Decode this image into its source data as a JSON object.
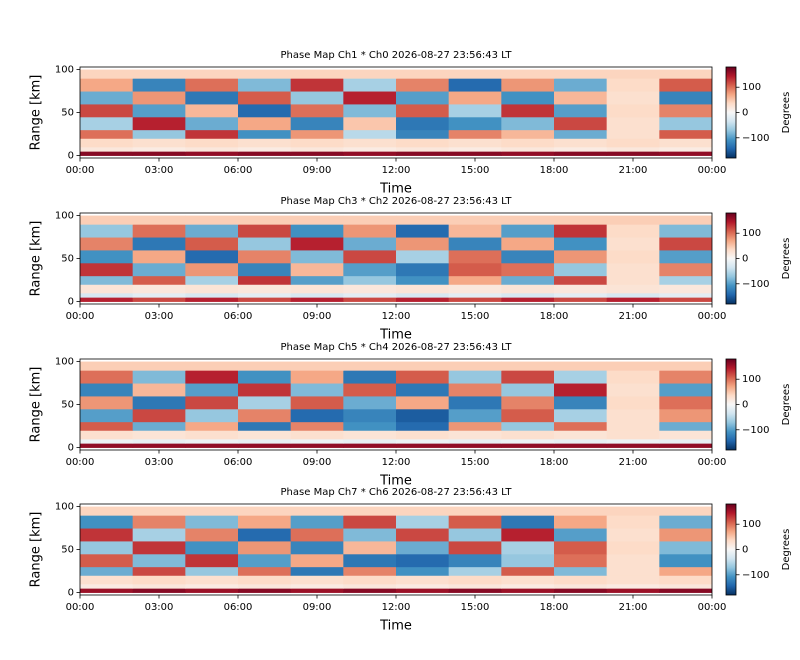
{
  "chart_data": [
    {
      "type": "heatmap",
      "title": "Phase Map Ch1 * Ch0 2026-08-27 23:56:43 LT",
      "xlabel": "Time",
      "ylabel": "Range [km]",
      "x_bins": [
        0,
        2,
        4,
        6,
        8,
        10,
        12,
        14,
        16,
        18,
        20,
        22,
        24
      ],
      "y_bins": [
        0,
        5,
        10,
        20,
        30,
        45,
        60,
        75,
        90,
        100
      ],
      "z": [
        [
          165,
          165,
          160,
          165,
          165,
          160,
          165,
          165,
          160,
          165,
          165,
          160
        ],
        [
          20,
          15,
          20,
          15,
          20,
          15,
          20,
          15,
          20,
          15,
          20,
          15
        ],
        [
          35,
          30,
          35,
          30,
          35,
          30,
          35,
          30,
          35,
          30,
          35,
          30
        ],
        [
          100,
          -70,
          130,
          -110,
          80,
          -50,
          -120,
          90,
          60,
          -90,
          30,
          110
        ],
        [
          -60,
          140,
          -90,
          70,
          -120,
          50,
          -130,
          -110,
          -80,
          120,
          30,
          -70
        ],
        [
          120,
          -100,
          60,
          -140,
          100,
          -80,
          110,
          -60,
          130,
          -100,
          35,
          90
        ],
        [
          -90,
          80,
          -130,
          110,
          -70,
          140,
          -100,
          70,
          -110,
          60,
          30,
          -120
        ],
        [
          70,
          -120,
          100,
          -80,
          130,
          -60,
          90,
          -140,
          80,
          -90,
          35,
          110
        ],
        [
          40,
          40,
          40,
          40,
          40,
          40,
          40,
          40,
          40,
          40,
          40,
          40
        ]
      ],
      "xlim": [
        0,
        24
      ],
      "xticks": [
        {
          "value": 0,
          "label": "00:00"
        },
        {
          "value": 3,
          "label": "03:00"
        },
        {
          "value": 6,
          "label": "06:00"
        },
        {
          "value": 9,
          "label": "09:00"
        },
        {
          "value": 12,
          "label": "12:00"
        },
        {
          "value": 15,
          "label": "15:00"
        },
        {
          "value": 18,
          "label": "18:00"
        },
        {
          "value": 21,
          "label": "21:00"
        },
        {
          "value": 24,
          "label": "00:00"
        }
      ],
      "ylim": [
        -3,
        103
      ],
      "yticks": [
        0,
        50,
        100
      ],
      "colorbar": {
        "label": "Degrees",
        "clim": [
          -180,
          180
        ],
        "ticks": [
          {
            "value": -100,
            "label": "−100"
          },
          0,
          100
        ]
      },
      "colormap": [
        "#053061",
        "#2166ac",
        "#4393c3",
        "#92c5de",
        "#d1e5f0",
        "#f7f7f7",
        "#fddbc7",
        "#f4a582",
        "#d6604d",
        "#b2182b",
        "#67001f"
      ]
    },
    {
      "type": "heatmap",
      "title": "Phase Map Ch3 * Ch2 2026-08-27 23:56:43 LT",
      "xlabel": "Time",
      "ylabel": "Range [km]",
      "x_bins": [
        0,
        2,
        4,
        6,
        8,
        10,
        12,
        14,
        16,
        18,
        20,
        22,
        24
      ],
      "y_bins": [
        0,
        5,
        10,
        20,
        30,
        45,
        60,
        75,
        90,
        100
      ],
      "z": [
        [
          140,
          120,
          140,
          120,
          140,
          120,
          140,
          120,
          140,
          120,
          140,
          120
        ],
        [
          -30,
          -20,
          -30,
          -20,
          -30,
          -20,
          -30,
          -20,
          -30,
          -20,
          -30,
          -20
        ],
        [
          25,
          20,
          25,
          20,
          25,
          20,
          25,
          20,
          25,
          20,
          25,
          20
        ],
        [
          -80,
          110,
          -60,
          130,
          -100,
          -70,
          -110,
          70,
          -90,
          120,
          30,
          -60
        ],
        [
          130,
          -90,
          80,
          -120,
          60,
          -100,
          -130,
          110,
          100,
          -70,
          30,
          90
        ],
        [
          -110,
          70,
          -140,
          90,
          -80,
          120,
          -60,
          100,
          -120,
          80,
          35,
          -100
        ],
        [
          90,
          -130,
          110,
          -70,
          140,
          -90,
          80,
          -120,
          70,
          -110,
          30,
          120
        ],
        [
          -70,
          100,
          -90,
          120,
          -110,
          80,
          -140,
          60,
          -100,
          130,
          35,
          -80
        ],
        [
          45,
          45,
          45,
          45,
          45,
          45,
          45,
          45,
          45,
          45,
          45,
          45
        ]
      ],
      "xlim": [
        0,
        24
      ],
      "xticks": [
        {
          "value": 0,
          "label": "00:00"
        },
        {
          "value": 3,
          "label": "03:00"
        },
        {
          "value": 6,
          "label": "06:00"
        },
        {
          "value": 9,
          "label": "09:00"
        },
        {
          "value": 12,
          "label": "12:00"
        },
        {
          "value": 15,
          "label": "15:00"
        },
        {
          "value": 18,
          "label": "18:00"
        },
        {
          "value": 21,
          "label": "21:00"
        },
        {
          "value": 24,
          "label": "00:00"
        }
      ],
      "ylim": [
        -3,
        103
      ],
      "yticks": [
        0,
        50,
        100
      ],
      "colorbar": {
        "label": "Degrees",
        "clim": [
          -180,
          180
        ],
        "ticks": [
          {
            "value": -100,
            "label": "−100"
          },
          0,
          100
        ]
      },
      "colormap": [
        "#053061",
        "#2166ac",
        "#4393c3",
        "#92c5de",
        "#d1e5f0",
        "#f7f7f7",
        "#fddbc7",
        "#f4a582",
        "#d6604d",
        "#b2182b",
        "#67001f"
      ]
    },
    {
      "type": "heatmap",
      "title": "Phase Map Ch5 * Ch4 2026-08-27 23:56:43 LT",
      "xlabel": "Time",
      "ylabel": "Range [km]",
      "x_bins": [
        0,
        2,
        4,
        6,
        8,
        10,
        12,
        14,
        16,
        18,
        20,
        22,
        24
      ],
      "y_bins": [
        0,
        5,
        10,
        20,
        30,
        45,
        60,
        75,
        90,
        100
      ],
      "z": [
        [
          160,
          160,
          160,
          160,
          160,
          160,
          160,
          160,
          160,
          160,
          160,
          160
        ],
        [
          -10,
          -15,
          -10,
          -15,
          -10,
          -15,
          -10,
          -15,
          -10,
          -15,
          -10,
          -15
        ],
        [
          30,
          25,
          30,
          25,
          30,
          25,
          30,
          25,
          30,
          25,
          30,
          25
        ],
        [
          110,
          -90,
          70,
          -130,
          90,
          -110,
          -140,
          80,
          -70,
          100,
          30,
          -90
        ],
        [
          -100,
          120,
          -70,
          90,
          -140,
          -120,
          -150,
          -100,
          110,
          -60,
          30,
          80
        ],
        [
          80,
          -130,
          120,
          -60,
          110,
          -90,
          70,
          -130,
          90,
          -120,
          35,
          100
        ],
        [
          -120,
          60,
          -100,
          130,
          -80,
          110,
          -130,
          90,
          -70,
          140,
          30,
          -100
        ],
        [
          100,
          -80,
          140,
          -110,
          70,
          -130,
          110,
          -70,
          120,
          -60,
          35,
          90
        ],
        [
          45,
          45,
          45,
          45,
          45,
          45,
          45,
          45,
          45,
          45,
          45,
          45
        ]
      ],
      "xlim": [
        0,
        24
      ],
      "xticks": [
        {
          "value": 0,
          "label": "00:00"
        },
        {
          "value": 3,
          "label": "03:00"
        },
        {
          "value": 6,
          "label": "06:00"
        },
        {
          "value": 9,
          "label": "09:00"
        },
        {
          "value": 12,
          "label": "12:00"
        },
        {
          "value": 15,
          "label": "15:00"
        },
        {
          "value": 18,
          "label": "18:00"
        },
        {
          "value": 21,
          "label": "21:00"
        },
        {
          "value": 24,
          "label": "00:00"
        }
      ],
      "ylim": [
        -3,
        103
      ],
      "yticks": [
        0,
        50,
        100
      ],
      "colorbar": {
        "label": "Degrees",
        "clim": [
          -180,
          180
        ],
        "ticks": [
          {
            "value": -100,
            "label": "−100"
          },
          0,
          100
        ]
      },
      "colormap": [
        "#053061",
        "#2166ac",
        "#4393c3",
        "#92c5de",
        "#d1e5f0",
        "#f7f7f7",
        "#fddbc7",
        "#f4a582",
        "#d6604d",
        "#b2182b",
        "#67001f"
      ]
    },
    {
      "type": "heatmap",
      "title": "Phase Map Ch7 * Ch6 2026-08-27 23:56:43 LT",
      "xlabel": "Time",
      "ylabel": "Range [km]",
      "x_bins": [
        0,
        2,
        4,
        6,
        8,
        10,
        12,
        14,
        16,
        18,
        20,
        22,
        24
      ],
      "y_bins": [
        0,
        5,
        10,
        20,
        30,
        45,
        60,
        75,
        90,
        100
      ],
      "z": [
        [
          155,
          165,
          155,
          165,
          155,
          165,
          155,
          165,
          155,
          165,
          155,
          165
        ],
        [
          15,
          20,
          15,
          20,
          15,
          20,
          15,
          20,
          15,
          20,
          15,
          20
        ],
        [
          30,
          35,
          30,
          35,
          30,
          35,
          30,
          35,
          30,
          35,
          30,
          35
        ],
        [
          -90,
          120,
          -70,
          100,
          -130,
          90,
          -110,
          -60,
          110,
          -80,
          30,
          70
        ],
        [
          110,
          -80,
          130,
          -100,
          70,
          -130,
          -140,
          -120,
          -70,
          100,
          30,
          -110
        ],
        [
          -70,
          130,
          -110,
          80,
          -120,
          60,
          -90,
          120,
          -60,
          110,
          35,
          -80
        ],
        [
          130,
          -60,
          90,
          -140,
          100,
          -80,
          120,
          -70,
          140,
          -100,
          30,
          80
        ],
        [
          -110,
          90,
          -80,
          70,
          -100,
          120,
          -60,
          110,
          -130,
          70,
          35,
          -90
        ],
        [
          40,
          40,
          40,
          40,
          40,
          40,
          40,
          40,
          40,
          40,
          40,
          40
        ]
      ],
      "xlim": [
        0,
        24
      ],
      "xticks": [
        {
          "value": 0,
          "label": "00:00"
        },
        {
          "value": 3,
          "label": "03:00"
        },
        {
          "value": 6,
          "label": "06:00"
        },
        {
          "value": 9,
          "label": "09:00"
        },
        {
          "value": 12,
          "label": "12:00"
        },
        {
          "value": 15,
          "label": "15:00"
        },
        {
          "value": 18,
          "label": "18:00"
        },
        {
          "value": 21,
          "label": "21:00"
        },
        {
          "value": 24,
          "label": "00:00"
        }
      ],
      "ylim": [
        -3,
        103
      ],
      "yticks": [
        0,
        50,
        100
      ],
      "colorbar": {
        "label": "Degrees",
        "clim": [
          -180,
          180
        ],
        "ticks": [
          {
            "value": -100,
            "label": "−100"
          },
          0,
          100
        ]
      },
      "colormap": [
        "#053061",
        "#2166ac",
        "#4393c3",
        "#92c5de",
        "#d1e5f0",
        "#f7f7f7",
        "#fddbc7",
        "#f4a582",
        "#d6604d",
        "#b2182b",
        "#67001f"
      ]
    }
  ]
}
